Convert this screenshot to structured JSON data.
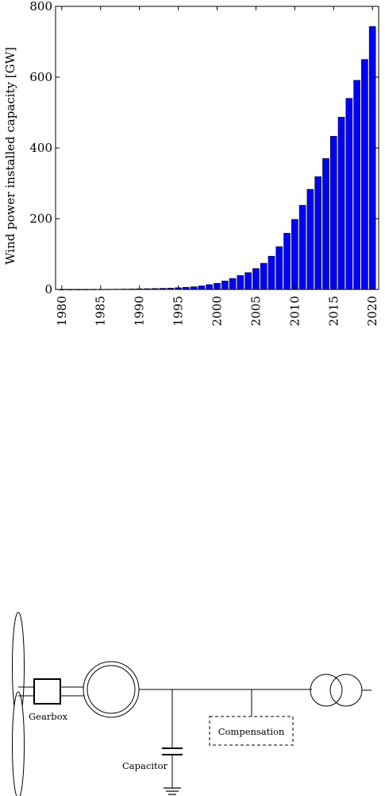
{
  "chart_data": {
    "type": "bar",
    "title": "",
    "ylabel": "Wind power installed capacity [GW]",
    "xlabel": "",
    "ylim": [
      0,
      800
    ],
    "yticks": [
      0,
      200,
      400,
      600,
      800
    ],
    "xticks": [
      1980,
      1985,
      1990,
      1995,
      2000,
      2005,
      2010,
      2015,
      2020
    ],
    "xlim": [
      1979.2,
      2020.8
    ],
    "bar_color": "#0000ff",
    "grid": false,
    "x": [
      1980,
      1981,
      1982,
      1983,
      1984,
      1985,
      1986,
      1987,
      1988,
      1989,
      1990,
      1991,
      1992,
      1993,
      1994,
      1995,
      1996,
      1997,
      1998,
      1999,
      2000,
      2001,
      2002,
      2003,
      2004,
      2005,
      2006,
      2007,
      2008,
      2009,
      2010,
      2011,
      2012,
      2013,
      2014,
      2015,
      2016,
      2017,
      2018,
      2019,
      2020
    ],
    "values": [
      0.01,
      0.02,
      0.05,
      0.1,
      0.2,
      0.4,
      0.6,
      0.8,
      1.1,
      1.3,
      1.8,
      2.2,
      2.6,
      3.2,
      3.8,
      4.8,
      6.1,
      7.6,
      10,
      13.6,
      17.4,
      23.9,
      31.1,
      39.4,
      47.6,
      59.1,
      74.1,
      93.9,
      121,
      159,
      198,
      238,
      283,
      319,
      370,
      433,
      487,
      540,
      591,
      650,
      743
    ]
  },
  "diagram": {
    "gearbox_label": "Gearbox",
    "capacitor_label": "Capacitor",
    "compensation_label": "Compensation"
  }
}
